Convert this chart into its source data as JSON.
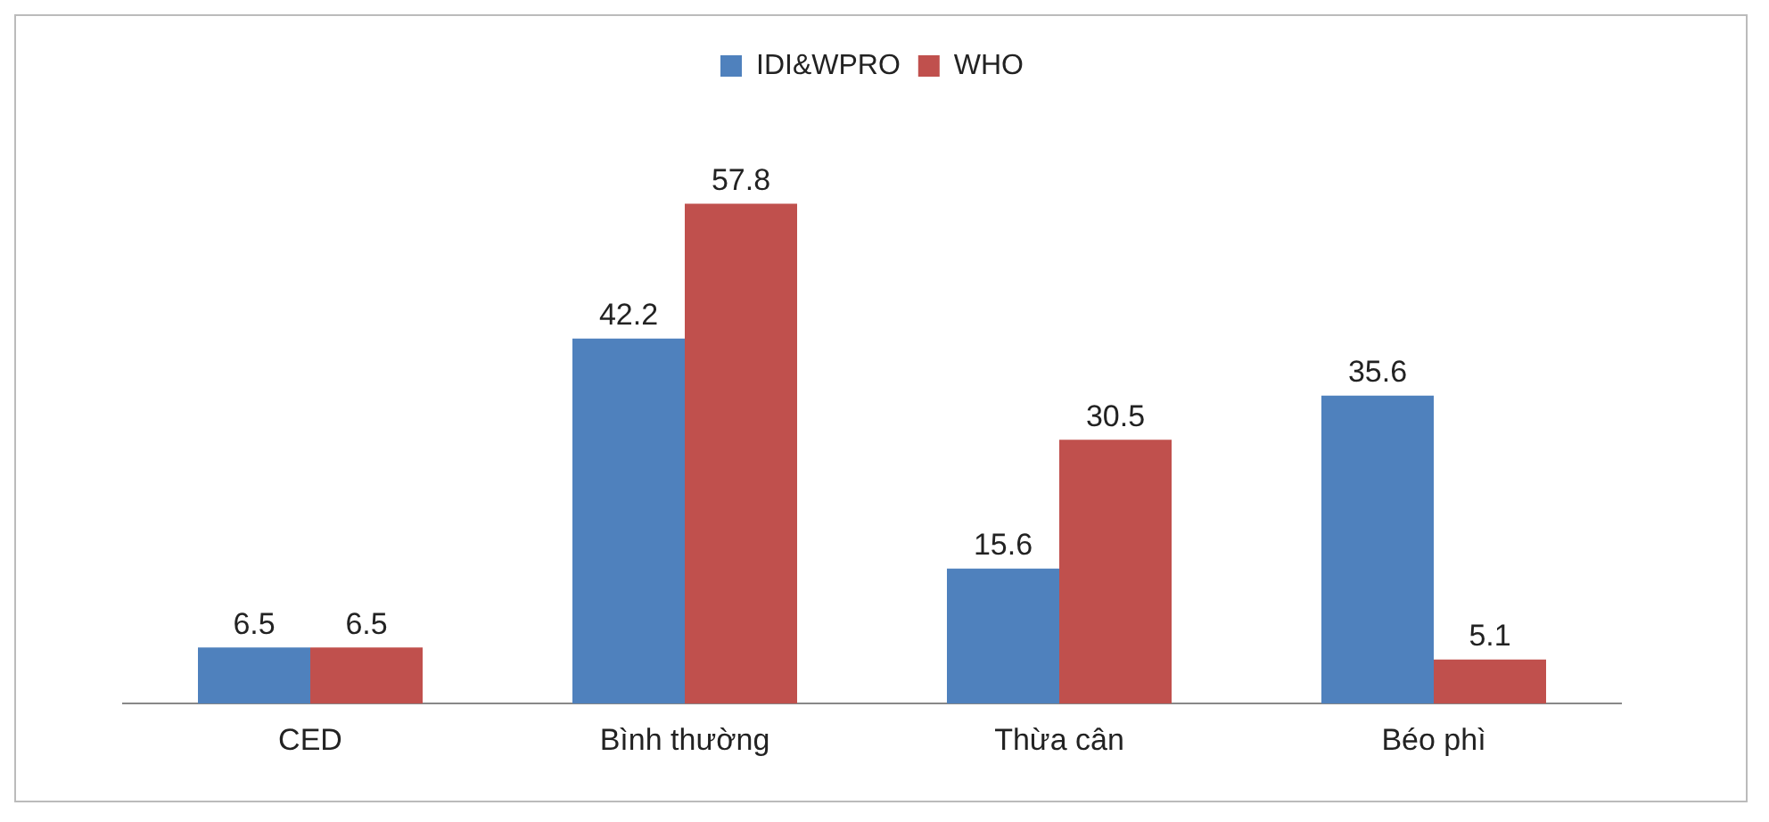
{
  "chart_data": {
    "type": "bar",
    "categories": [
      "CED",
      "Bình thường",
      "Thừa cân",
      "Béo phì"
    ],
    "series": [
      {
        "name": "IDI&WPRO",
        "color": "#4f81bd",
        "values": [
          6.5,
          42.2,
          15.6,
          35.6
        ]
      },
      {
        "name": "WHO",
        "color": "#c0504d",
        "values": [
          6.5,
          57.8,
          30.5,
          5.1
        ]
      }
    ],
    "data_labels": true,
    "legend": "top",
    "grid": false
  }
}
